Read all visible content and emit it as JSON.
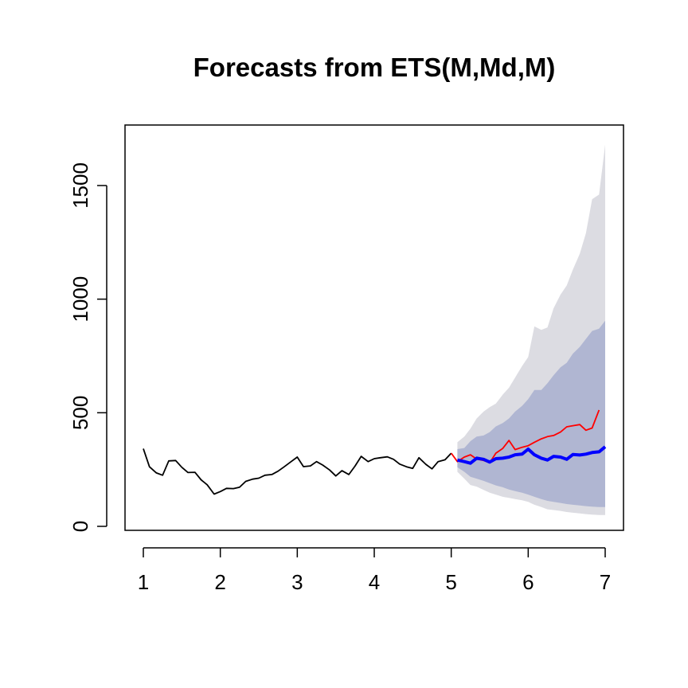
{
  "chart_data": {
    "type": "line",
    "title": "Forecasts from ETS(M,Md,M)",
    "xlabel": "",
    "ylabel": "",
    "xlim": [
      1,
      7
    ],
    "ylim": [
      0,
      1700
    ],
    "x_ticks": [
      "1",
      "2",
      "3",
      "4",
      "5",
      "6",
      "7"
    ],
    "y_ticks": [
      "0",
      "500",
      "1000",
      "1500"
    ],
    "x_tick_values": [
      1,
      2,
      3,
      4,
      5,
      6,
      7
    ],
    "y_tick_values": [
      0,
      500,
      1000,
      1500
    ],
    "colors": {
      "history": "#000000",
      "actual": "#ff0000",
      "forecast": "#0000ff",
      "band80": "#b0b6d2",
      "band95": "#dcdce2"
    },
    "series": [
      {
        "key": "history",
        "x": [
          1.0,
          1.08,
          1.17,
          1.25,
          1.33,
          1.42,
          1.5,
          1.58,
          1.67,
          1.75,
          1.83,
          1.92,
          2.0,
          2.08,
          2.17,
          2.25,
          2.33,
          2.42,
          2.5,
          2.58,
          2.67,
          2.75,
          2.83,
          2.92,
          3.0,
          3.08,
          3.17,
          3.25,
          3.33,
          3.42,
          3.5,
          3.58,
          3.67,
          3.75,
          3.83,
          3.92,
          4.0,
          4.08,
          4.17,
          4.25,
          4.33,
          4.42,
          4.5,
          4.58,
          4.67,
          4.75,
          4.83,
          4.92,
          5.0
        ],
        "values": [
          342,
          262,
          235,
          225,
          288,
          290,
          260,
          237,
          238,
          205,
          183,
          142,
          153,
          167,
          166,
          172,
          198,
          208,
          212,
          225,
          228,
          243,
          262,
          285,
          305,
          263,
          266,
          285,
          270,
          248,
          222,
          245,
          228,
          265,
          308,
          285,
          298,
          302,
          306,
          295,
          274,
          262,
          255,
          302,
          273,
          253,
          285,
          293,
          322
        ]
      },
      {
        "key": "actual",
        "x": [
          5.0,
          5.08,
          5.17,
          5.25,
          5.33,
          5.42,
          5.5,
          5.58,
          5.67,
          5.75,
          5.83,
          5.92,
          6.0,
          6.08,
          6.17,
          6.25,
          6.33,
          6.42,
          6.5,
          6.58,
          6.67,
          6.75,
          6.83,
          6.92
        ],
        "values": [
          322,
          285,
          305,
          315,
          296,
          290,
          280,
          322,
          343,
          378,
          338,
          348,
          355,
          370,
          385,
          395,
          400,
          415,
          438,
          443,
          448,
          423,
          433,
          512
        ]
      },
      {
        "key": "forecast",
        "x": [
          5.08,
          5.17,
          5.25,
          5.33,
          5.42,
          5.5,
          5.58,
          5.67,
          5.75,
          5.83,
          5.92,
          6.0,
          6.08,
          6.17,
          6.25,
          6.33,
          6.42,
          6.5,
          6.58,
          6.67,
          6.75,
          6.83,
          6.92,
          7.0
        ],
        "values": [
          292,
          285,
          278,
          300,
          295,
          283,
          298,
          300,
          305,
          315,
          318,
          340,
          315,
          300,
          292,
          308,
          305,
          295,
          316,
          314,
          318,
          325,
          328,
          350
        ]
      }
    ],
    "bands": [
      {
        "level": 95,
        "x": [
          5.08,
          5.17,
          5.25,
          5.33,
          5.42,
          5.5,
          5.58,
          5.67,
          5.75,
          5.83,
          5.92,
          6.0,
          6.08,
          6.17,
          6.25,
          6.33,
          6.42,
          6.5,
          6.58,
          6.67,
          6.75,
          6.83,
          6.92,
          7.0
        ],
        "lower": [
          240,
          210,
          182,
          175,
          160,
          148,
          140,
          130,
          125,
          120,
          115,
          108,
          95,
          85,
          75,
          72,
          68,
          63,
          60,
          57,
          54,
          52,
          50,
          50
        ],
        "upper": [
          370,
          395,
          430,
          475,
          505,
          525,
          540,
          580,
          610,
          655,
          705,
          745,
          880,
          865,
          875,
          960,
          1020,
          1060,
          1130,
          1200,
          1290,
          1440,
          1460,
          1680
        ]
      },
      {
        "level": 80,
        "x": [
          5.08,
          5.17,
          5.25,
          5.33,
          5.42,
          5.5,
          5.58,
          5.67,
          5.75,
          5.83,
          5.92,
          6.0,
          6.08,
          6.17,
          6.25,
          6.33,
          6.42,
          6.5,
          6.58,
          6.67,
          6.75,
          6.83,
          6.92,
          7.0
        ],
        "lower": [
          260,
          240,
          218,
          210,
          200,
          190,
          180,
          172,
          162,
          155,
          148,
          140,
          130,
          120,
          112,
          108,
          103,
          98,
          95,
          92,
          89,
          87,
          85,
          85
        ],
        "upper": [
          340,
          345,
          375,
          395,
          400,
          415,
          440,
          455,
          475,
          505,
          530,
          560,
          600,
          600,
          630,
          665,
          700,
          720,
          760,
          790,
          825,
          860,
          870,
          905
        ]
      }
    ]
  }
}
